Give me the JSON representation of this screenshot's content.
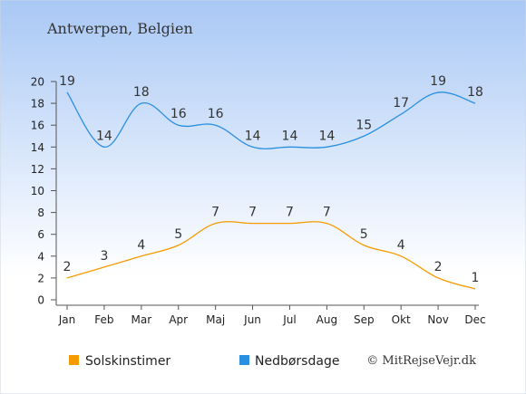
{
  "title": "Antwerpen, Belgien",
  "credit": "© MitRejseVejr.dk",
  "colors": {
    "background_top": "#a9c8f5",
    "background_bottom": "#ffffff",
    "sunshine": "#f59a00",
    "rain": "#2b8fe0",
    "text": "#333333"
  },
  "chart_data": {
    "type": "line",
    "categories": [
      "Jan",
      "Feb",
      "Mar",
      "Apr",
      "Maj",
      "Jun",
      "Jul",
      "Aug",
      "Sep",
      "Okt",
      "Nov",
      "Dec"
    ],
    "series": [
      {
        "name": "Solskinstimer",
        "color": "#f59a00",
        "values": [
          2,
          3,
          4,
          5,
          7,
          7,
          7,
          7,
          5,
          4,
          2,
          1
        ]
      },
      {
        "name": "Nedbørsdage",
        "color": "#2b8fe0",
        "values": [
          19,
          14,
          18,
          16,
          16,
          14,
          14,
          14,
          15,
          17,
          19,
          18
        ]
      }
    ],
    "yticks": [
      0,
      2,
      4,
      6,
      8,
      10,
      12,
      14,
      16,
      18,
      20
    ],
    "ylim": [
      0,
      20
    ],
    "grid": false,
    "legend": "bottom"
  }
}
